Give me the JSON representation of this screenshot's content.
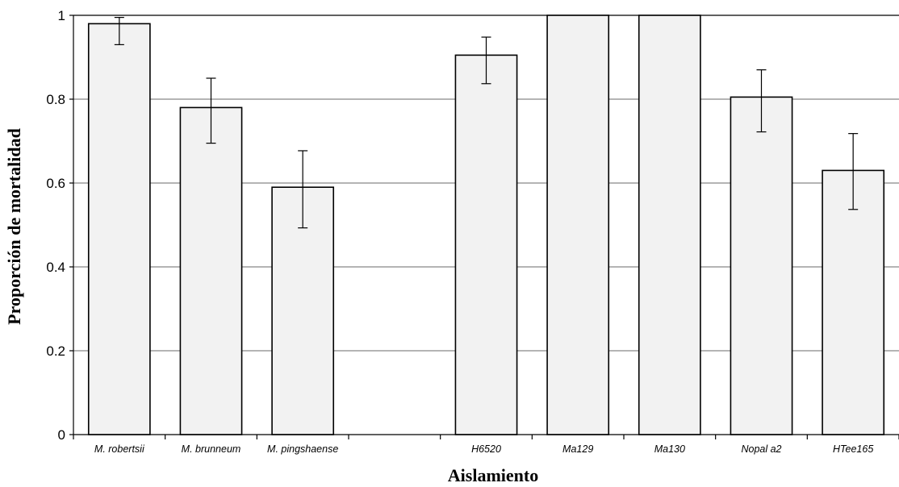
{
  "chart_data": {
    "type": "bar",
    "title": "",
    "xlabel": "Aislamiento",
    "ylabel": "Proporción de mortalidad",
    "categories": [
      "M. robertsii",
      "M. brunneum",
      "M. pingshaense",
      "",
      "H6520",
      "Ma129",
      "Ma130",
      "Nopal a2",
      "HTee165"
    ],
    "values": [
      0.98,
      0.78,
      0.59,
      null,
      0.905,
      1.0,
      1.0,
      0.805,
      0.63
    ],
    "error_low": [
      0.93,
      0.695,
      0.493,
      null,
      0.837,
      null,
      null,
      0.722,
      0.537
    ],
    "error_high": [
      0.995,
      0.85,
      0.677,
      null,
      0.948,
      null,
      null,
      0.87,
      0.718
    ],
    "ylim": [
      0,
      1
    ],
    "yticks": [
      "0",
      "0.2",
      "0.4",
      "0.6",
      "0.8",
      "1"
    ],
    "grid": true,
    "bar_color": "#f2f2f2",
    "bar_edge_color": "#000000",
    "grid_color": "#868686"
  }
}
